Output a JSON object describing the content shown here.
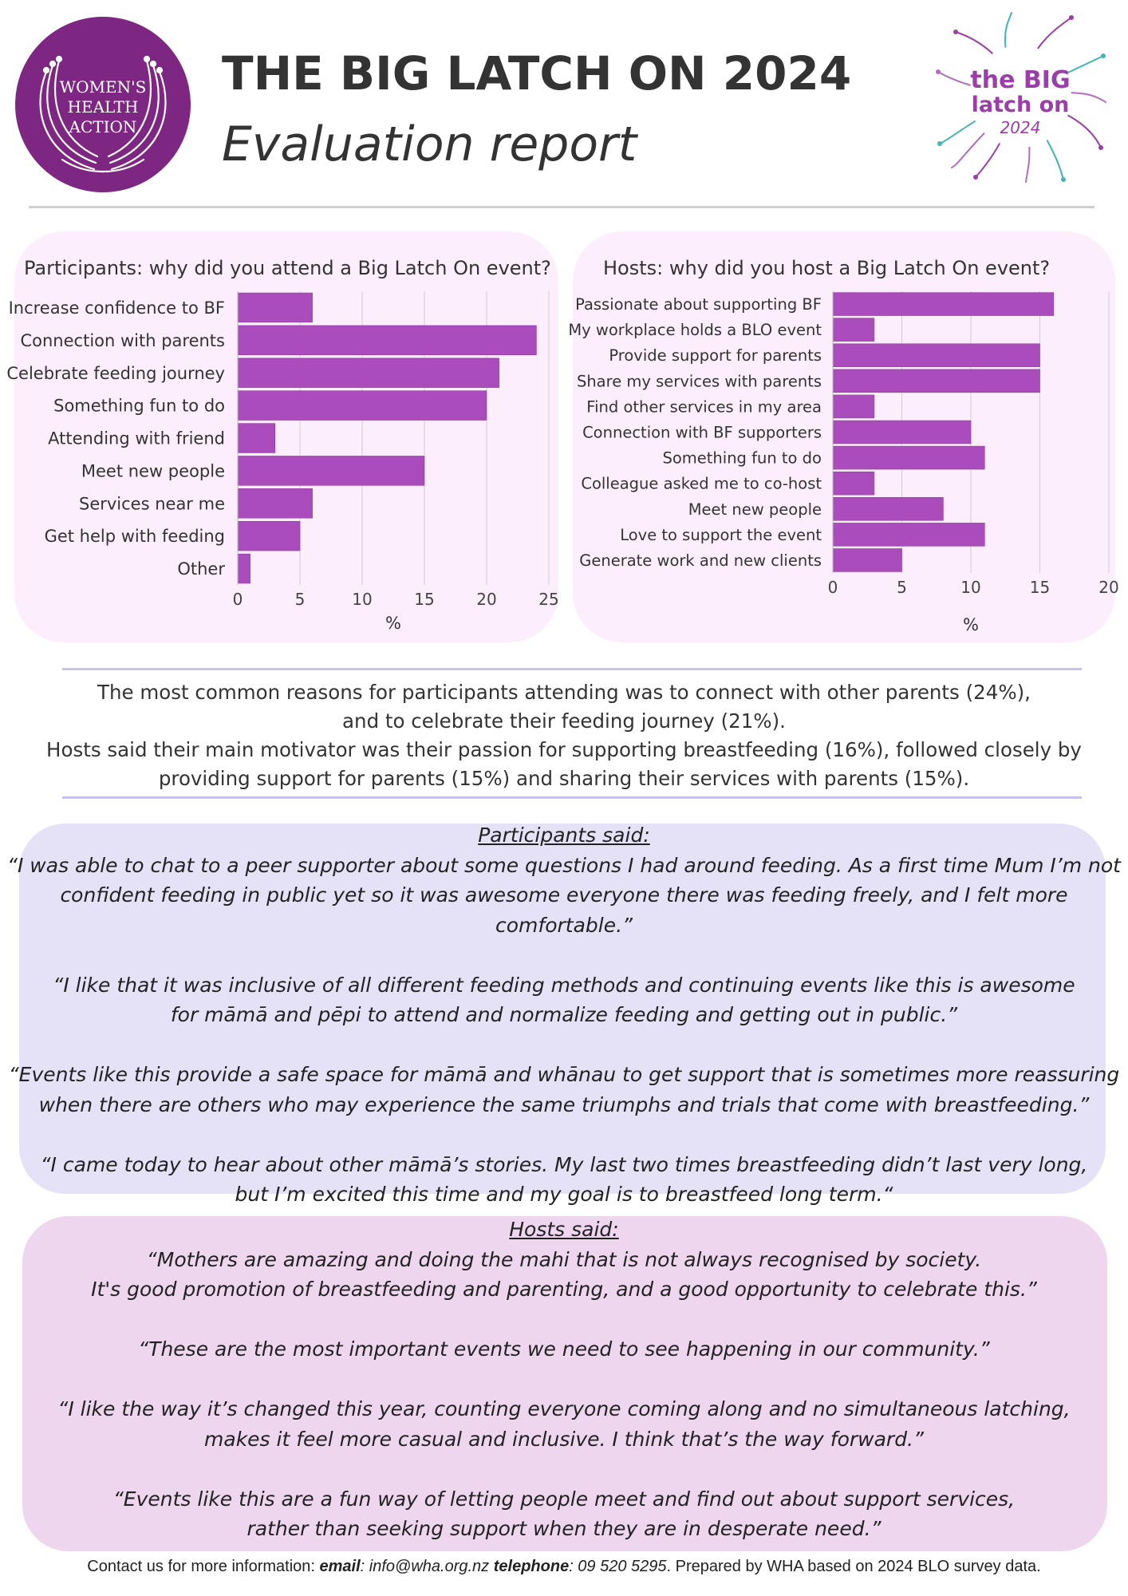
{
  "header": {
    "org_logo_text": [
      "WOMEN'S",
      "HEALTH",
      "ACTION"
    ],
    "title": "THE BIG LATCH ON 2024",
    "subtitle": "Evaluation report",
    "event_logo_text": [
      "the BIG",
      "latch on",
      "2024"
    ]
  },
  "colors": {
    "bar": "#ab4cbc",
    "panel_bg": "#fdeefd",
    "participants_box": "#e5e2f8",
    "hosts_box": "#edd6ee",
    "logo_purple": "#7d2782",
    "divider": "#c7c1ee"
  },
  "chart_data": [
    {
      "type": "bar",
      "orientation": "horizontal",
      "title": "Participants: why did you attend a Big Latch On event?",
      "categories": [
        "Increase confidence to BF",
        "Connection with parents",
        "Celebrate feeding journey",
        "Something fun to do",
        "Attending with friend",
        "Meet new people",
        "Services near me",
        "Get help with feeding",
        "Other"
      ],
      "values": [
        6,
        24,
        21,
        20,
        3,
        15,
        6,
        5,
        1
      ],
      "xlabel": "%",
      "ylabel": "",
      "xlim": [
        0,
        25
      ],
      "ticks": [
        "0",
        "5",
        "10",
        "15",
        "20",
        "25"
      ],
      "grid": "vertical"
    },
    {
      "type": "bar",
      "orientation": "horizontal",
      "title": "Hosts: why did you host a Big Latch On event?",
      "categories": [
        "Passionate about supporting BF",
        "My workplace holds a BLO event",
        "Provide support for parents",
        "Share my services with parents",
        "Find other services in my area",
        "Connection with BF supporters",
        "Something fun to do",
        "Colleague asked me to co-host",
        "Meet new people",
        "Love to support the event",
        "Generate work and new clients"
      ],
      "values": [
        16,
        3,
        15,
        15,
        3,
        10,
        11,
        3,
        8,
        11,
        5
      ],
      "xlabel": "%",
      "ylabel": "",
      "xlim": [
        0,
        20
      ],
      "ticks": [
        "0",
        "5",
        "10",
        "15",
        "20"
      ],
      "grid": "vertical"
    }
  ],
  "summary": {
    "lines": [
      "The most common reasons for participants attending was to connect with other parents (24%),",
      "and to celebrate their feeding journey (21%).",
      "Hosts said their main motivator was their passion for supporting breastfeeding (16%), followed closely by",
      "providing support for parents (15%) and sharing their services with parents (15%)."
    ]
  },
  "participants": {
    "heading": "Participants said:",
    "quotes": [
      [
        "“I was able to chat to a peer supporter about some questions I had around feeding. As a first time Mum I’m not",
        "confident feeding in public yet so it was awesome everyone there was feeding freely, and I felt more comfortable.”"
      ],
      [
        "“I like that it was inclusive of all different feeding methods and continuing events like this is awesome",
        "for māmā and pēpi to attend and normalize feeding and getting out in public.”"
      ],
      [
        "“Events like this provide a safe space for māmā and whānau to get support that is sometimes more reassuring",
        "when there are others who may experience the same triumphs and trials that come with breastfeeding.”"
      ],
      [
        "“I came today to hear about other māmā’s stories. My last two times breastfeeding didn’t last very long,",
        "but I’m excited this time and my goal is to breastfeed long term.“"
      ]
    ]
  },
  "hosts": {
    "heading": "Hosts said:",
    "quotes": [
      [
        "“Mothers are amazing and doing the mahi that is not always recognised by society.",
        "It's good promotion of breastfeeding and parenting, and a good opportunity to celebrate this.”"
      ],
      [
        "“These are the most important events we need to see happening in our community.”"
      ],
      [
        "“I like the way it’s changed this year, counting everyone coming along and no simultaneous latching,",
        "makes it feel more casual and inclusive. I think that’s the way forward.”"
      ],
      [
        "“Events like this are a fun way of letting people meet and find out about support services,",
        "rather than seeking support when they are in desperate need.”"
      ]
    ]
  },
  "footer": {
    "intro": "Contact us for more information: ",
    "email_label": "email",
    "email": ": info@wha.org.nz ",
    "telephone_label": "telephone",
    "telephone": ": 09 520 5295",
    "tail": ". Prepared by WHA based on 2024 BLO survey data."
  }
}
